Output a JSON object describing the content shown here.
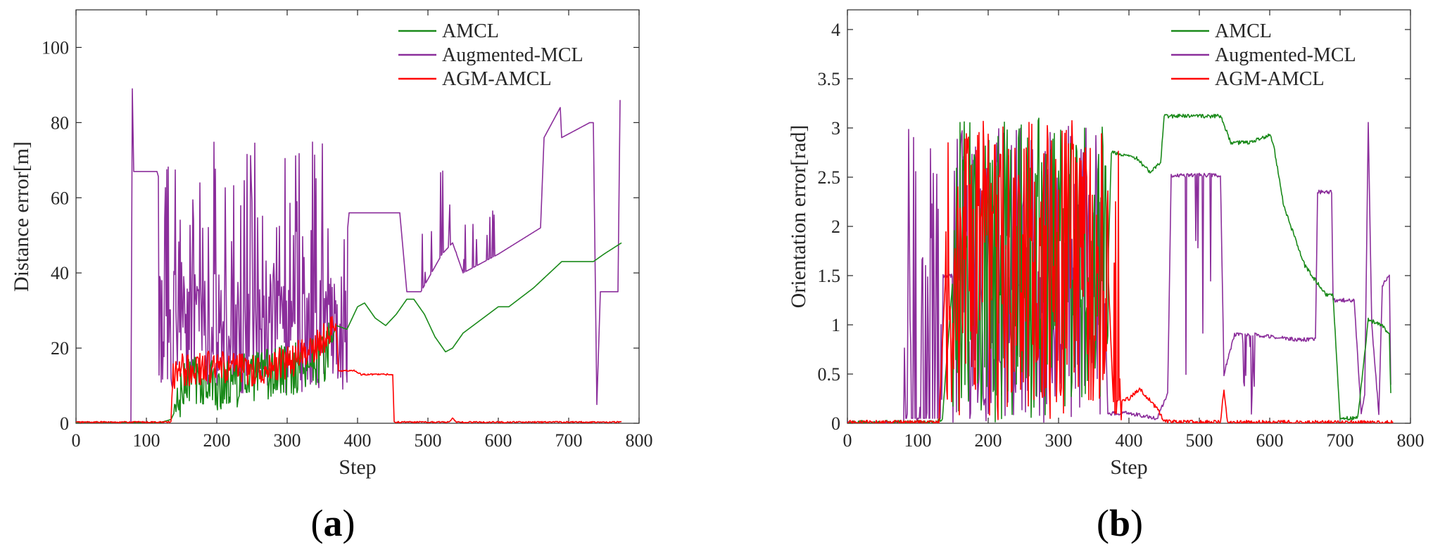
{
  "chart_data": [
    {
      "type": "line",
      "panel_label": "a",
      "xlabel": "Step",
      "ylabel": "Distance error[m]",
      "xlim": [
        0,
        800
      ],
      "ylim": [
        0,
        110
      ],
      "xticks": [
        0,
        100,
        200,
        300,
        400,
        500,
        600,
        700,
        800
      ],
      "yticks": [
        0,
        20,
        40,
        60,
        80,
        100
      ],
      "legend": "top-right",
      "series": [
        {
          "name": "AMCL",
          "color": "#1a8a1a",
          "noise": "spiky",
          "points": [
            [
              0,
              0.2
            ],
            [
              120,
              0.2
            ],
            [
              135,
              1
            ],
            [
              145,
              5
            ],
            [
              160,
              12
            ],
            [
              200,
              10
            ],
            [
              250,
              12
            ],
            [
              300,
              14
            ],
            [
              355,
              18
            ],
            [
              370,
              26
            ],
            [
              385,
              25
            ],
            [
              400,
              31
            ],
            [
              410,
              32
            ],
            [
              425,
              28
            ],
            [
              440,
              26
            ],
            [
              455,
              29
            ],
            [
              470,
              33
            ],
            [
              480,
              33
            ],
            [
              495,
              29
            ],
            [
              510,
              23
            ],
            [
              525,
              19
            ],
            [
              535,
              20
            ],
            [
              550,
              24
            ],
            [
              600,
              31
            ],
            [
              615,
              31
            ],
            [
              650,
              36
            ],
            [
              690,
              43
            ],
            [
              735,
              43
            ],
            [
              750,
              45
            ],
            [
              775,
              48
            ]
          ]
        },
        {
          "name": "Augmented-MCL",
          "color": "#8b2e9b",
          "noise": "heavy",
          "points": [
            [
              0,
              0
            ],
            [
              78,
              0
            ],
            [
              80,
              89
            ],
            [
              82,
              67
            ],
            [
              115,
              67
            ],
            [
              118,
              65
            ],
            [
              125,
              64
            ],
            [
              140,
              35
            ],
            [
              170,
              25
            ],
            [
              260,
              30
            ],
            [
              330,
              30
            ],
            [
              365,
              32
            ],
            [
              380,
              40
            ],
            [
              388,
              56
            ],
            [
              460,
              56
            ],
            [
              470,
              35
            ],
            [
              490,
              35
            ],
            [
              520,
              45
            ],
            [
              535,
              48
            ],
            [
              550,
              40
            ],
            [
              600,
              45
            ],
            [
              660,
              52
            ],
            [
              665,
              76
            ],
            [
              688,
              84
            ],
            [
              690,
              76
            ],
            [
              730,
              80
            ],
            [
              735,
              80
            ],
            [
              740,
              5
            ],
            [
              745,
              35
            ],
            [
              770,
              35
            ],
            [
              773,
              86
            ]
          ]
        },
        {
          "name": "AGM-AMCL",
          "color": "#ff0000",
          "noise": "dense",
          "points": [
            [
              0,
              0.3
            ],
            [
              135,
              0.3
            ],
            [
              137,
              12
            ],
            [
              150,
              14
            ],
            [
              200,
              15
            ],
            [
              250,
              14
            ],
            [
              300,
              16
            ],
            [
              340,
              20
            ],
            [
              370,
              26
            ],
            [
              372,
              14
            ],
            [
              395,
              14
            ],
            [
              405,
              13
            ],
            [
              450,
              13
            ],
            [
              452,
              0.3
            ],
            [
              530,
              0.3
            ],
            [
              535,
              1.5
            ],
            [
              540,
              0.3
            ],
            [
              775,
              0.3
            ]
          ]
        }
      ]
    },
    {
      "type": "line",
      "panel_label": "b",
      "xlabel": "Step",
      "ylabel": "Orientation error[rad]",
      "xlim": [
        0,
        800
      ],
      "ylim": [
        0,
        4.2
      ],
      "xticks": [
        0,
        100,
        200,
        300,
        400,
        500,
        600,
        700,
        800
      ],
      "yticks": [
        0,
        0.5,
        1,
        1.5,
        2,
        2.5,
        3,
        3.5,
        4
      ],
      "legend": "top-right",
      "series": [
        {
          "name": "AMCL",
          "color": "#1a8a1a",
          "noise": "phase",
          "points": [
            [
              0,
              0.01
            ],
            [
              125,
              0.01
            ],
            [
              135,
              0.05
            ],
            [
              150,
              1.5
            ],
            [
              370,
              1.5
            ],
            [
              375,
              2.75
            ],
            [
              410,
              2.7
            ],
            [
              430,
              2.55
            ],
            [
              445,
              2.65
            ],
            [
              450,
              3.12
            ],
            [
              530,
              3.12
            ],
            [
              545,
              2.85
            ],
            [
              570,
              2.85
            ],
            [
              600,
              2.93
            ],
            [
              605,
              2.85
            ],
            [
              620,
              2.2
            ],
            [
              650,
              1.6
            ],
            [
              680,
              1.3
            ],
            [
              690,
              1.3
            ],
            [
              700,
              0.05
            ],
            [
              725,
              0.05
            ],
            [
              740,
              1.05
            ],
            [
              760,
              1.0
            ],
            [
              770,
              0.9
            ],
            [
              772,
              0.3
            ]
          ]
        },
        {
          "name": "Augmented-MCL",
          "color": "#8b2e9b",
          "noise": "phase",
          "points": [
            [
              0,
              0
            ],
            [
              80,
              0
            ],
            [
              82,
              1.5
            ],
            [
              135,
              1.5
            ],
            [
              150,
              1.5
            ],
            [
              365,
              1.5
            ],
            [
              370,
              0.1
            ],
            [
              400,
              0.1
            ],
            [
              440,
              0.05
            ],
            [
              455,
              0.3
            ],
            [
              460,
              2.52
            ],
            [
              530,
              2.52
            ],
            [
              535,
              0.5
            ],
            [
              550,
              0.9
            ],
            [
              580,
              0.9
            ],
            [
              640,
              0.85
            ],
            [
              665,
              0.85
            ],
            [
              668,
              2.35
            ],
            [
              688,
              2.35
            ],
            [
              690,
              1.25
            ],
            [
              720,
              1.25
            ],
            [
              730,
              0.1
            ],
            [
              735,
              0.3
            ],
            [
              740,
              3.05
            ],
            [
              745,
              1.0
            ],
            [
              755,
              0.1
            ],
            [
              760,
              1.4
            ],
            [
              770,
              1.5
            ],
            [
              772,
              0.4
            ]
          ]
        },
        {
          "name": "AGM-AMCL",
          "color": "#ff0000",
          "noise": "phase",
          "points": [
            [
              0,
              0.01
            ],
            [
              130,
              0.01
            ],
            [
              140,
              1.6
            ],
            [
              370,
              1.6
            ],
            [
              378,
              0.2
            ],
            [
              400,
              0.25
            ],
            [
              415,
              0.35
            ],
            [
              440,
              0.15
            ],
            [
              450,
              0.02
            ],
            [
              530,
              0.01
            ],
            [
              535,
              0.35
            ],
            [
              540,
              0.01
            ],
            [
              775,
              0.01
            ]
          ]
        }
      ]
    }
  ]
}
